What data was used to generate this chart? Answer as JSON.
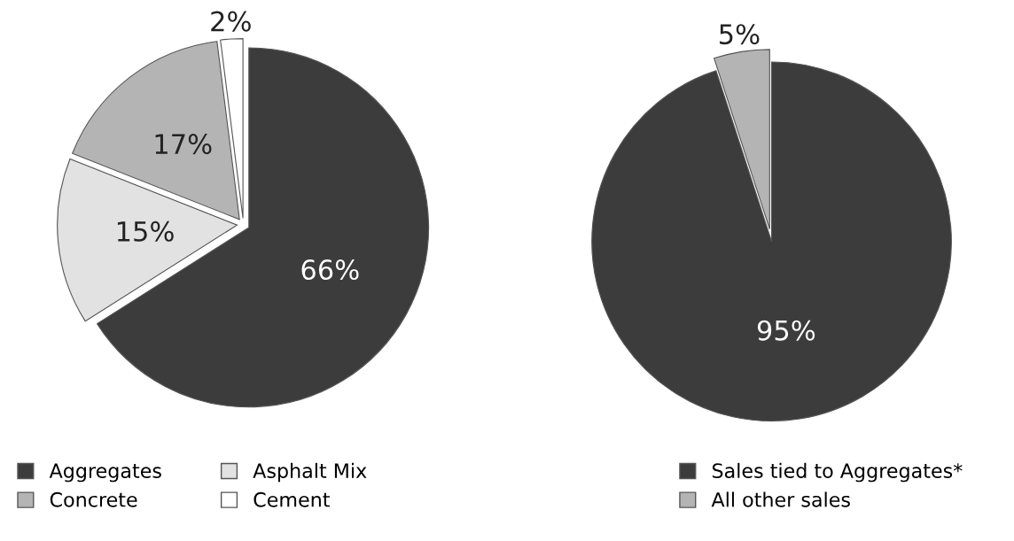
{
  "chart_data": [
    {
      "type": "pie",
      "categories": [
        "Aggregates",
        "Asphalt Mix",
        "Concrete",
        "Cement"
      ],
      "values": [
        66,
        15,
        17,
        2
      ],
      "colors": [
        "#3c3c3c",
        "#e2e2e2",
        "#b4b4b4",
        "#ffffff"
      ],
      "value_labels": [
        "66%",
        "15%",
        "17%",
        "2%"
      ],
      "legend": "bottom left"
    },
    {
      "type": "pie",
      "categories": [
        "Sales tied to Aggregates*",
        "All other sales"
      ],
      "values": [
        95,
        5
      ],
      "colors": [
        "#3c3c3c",
        "#b4b4b4"
      ],
      "value_labels": [
        "95%",
        "5%"
      ],
      "legend": "bottom"
    }
  ]
}
